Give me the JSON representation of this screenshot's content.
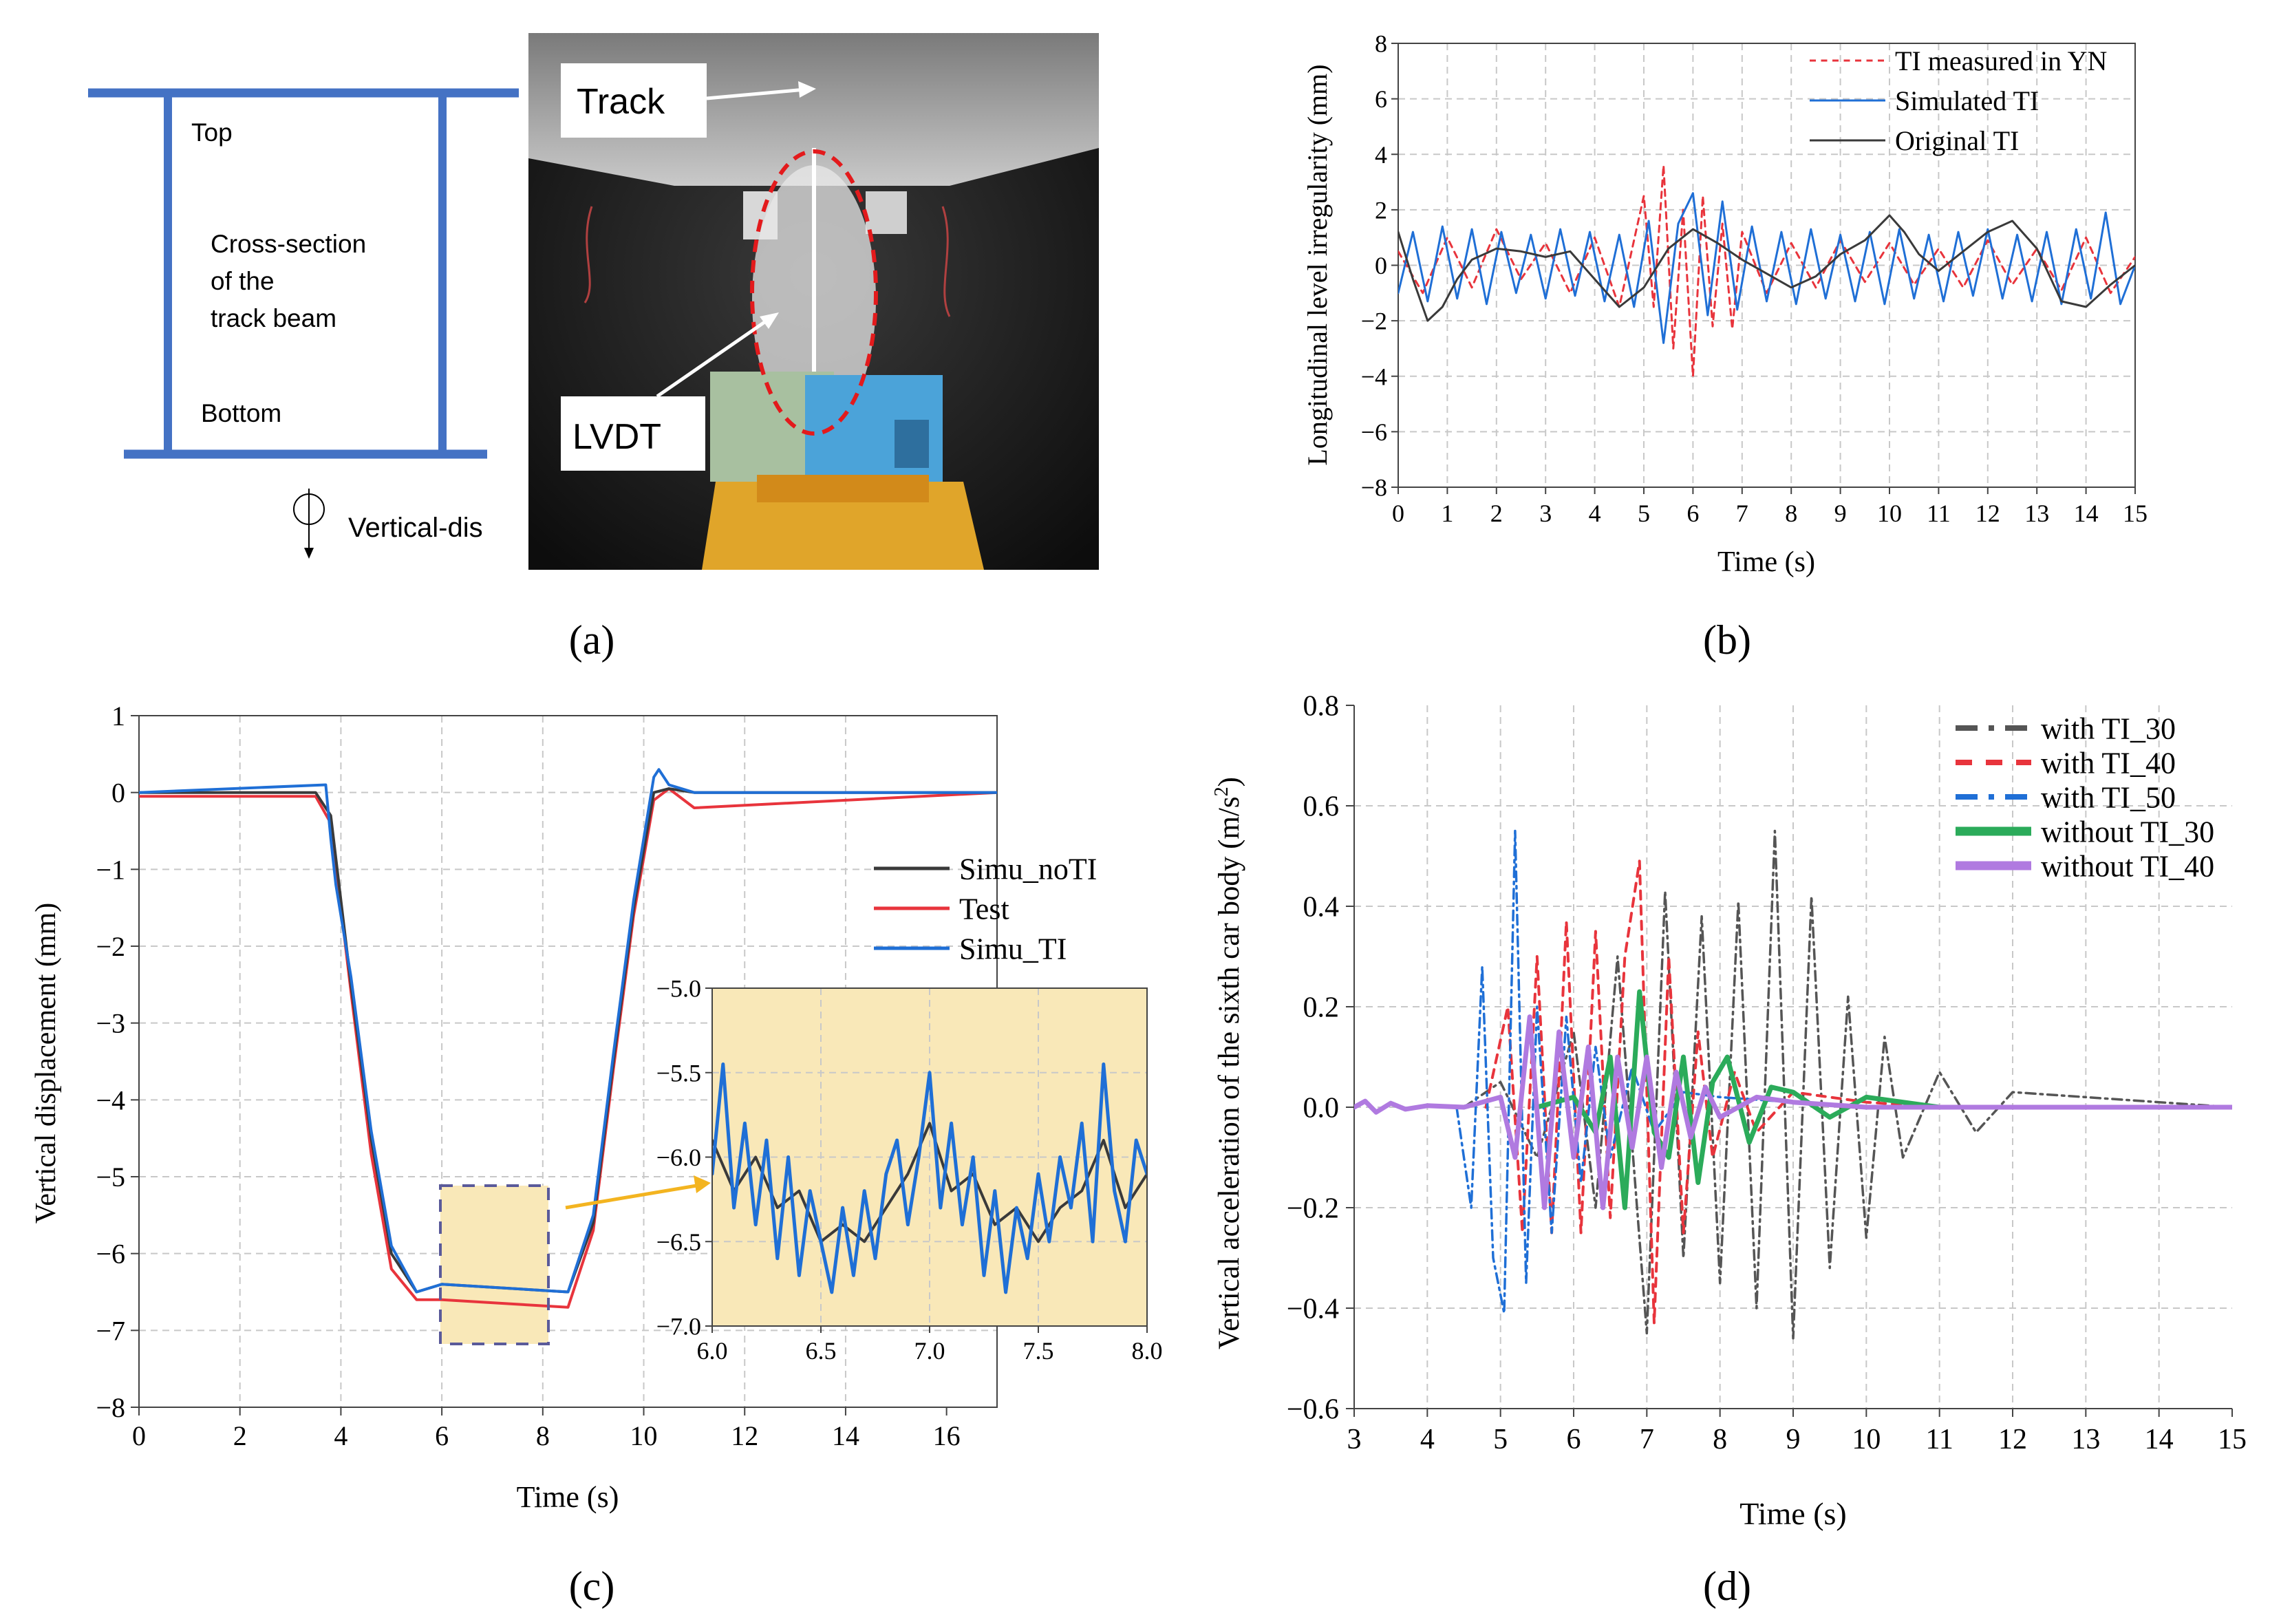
{
  "colors": {
    "beam": "#4472c4",
    "red": "#e8343c",
    "blue": "#1f6fd6",
    "black": "#3a3a3a",
    "gray": "#555555",
    "green": "#2bab5a",
    "purple": "#b07ae0",
    "zoom_bg": "#f9e8b8",
    "grid": "#c8c8c8",
    "arrow": "#f3b420"
  },
  "panel_a": {
    "label": "(a)",
    "diagram": {
      "top": "Top",
      "cross_section_line1": "Cross-section",
      "cross_section_line2": "of the",
      "cross_section_line3": "track beam",
      "bottom": "Bottom",
      "vertical_dis": "Vertical-dis"
    },
    "photo": {
      "track_label": "Track",
      "lvdt_label": "LVDT"
    }
  },
  "chart_data": [
    {
      "id": "b",
      "label": "(b)",
      "type": "line",
      "title": "",
      "xlabel": "Time (s)",
      "ylabel": "Longitudinal level irregularity (mm)",
      "xlim": [
        0,
        15
      ],
      "ylim": [
        -8,
        8
      ],
      "xticks": [
        "0",
        "1",
        "2",
        "3",
        "4",
        "5",
        "6",
        "7",
        "8",
        "9",
        "10",
        "11",
        "12",
        "13",
        "14",
        "15"
      ],
      "yticks": [
        "8",
        "6",
        "4",
        "2",
        "0",
        "−2",
        "−4",
        "−6",
        "−8"
      ],
      "legend_position": "top-right",
      "series": [
        {
          "name": "TI measured in YN",
          "style": "dashed",
          "color": "red",
          "x": [
            0,
            0.5,
            1,
            1.5,
            2,
            2.5,
            3,
            3.5,
            4,
            4.5,
            5,
            5.2,
            5.4,
            5.6,
            5.8,
            6,
            6.2,
            6.4,
            6.6,
            6.8,
            7,
            7.5,
            8,
            8.5,
            9,
            9.5,
            10,
            10.5,
            11,
            11.5,
            12,
            12.5,
            13,
            13.5,
            14,
            14.5,
            15
          ],
          "y": [
            0.5,
            -1,
            1,
            -0.8,
            1.3,
            -0.5,
            0.8,
            -1,
            1,
            -1.5,
            2.5,
            -1.5,
            3.6,
            -3,
            2,
            -4,
            2.5,
            -2.2,
            1.5,
            -2.3,
            1.2,
            -1,
            0.8,
            -0.8,
            0.9,
            -0.6,
            0.8,
            -0.7,
            0.6,
            -0.8,
            0.9,
            -0.7,
            0.6,
            -0.9,
            1,
            -1,
            0.3
          ]
        },
        {
          "name": "Simulated TI",
          "style": "solid",
          "color": "blue",
          "x": [
            0,
            0.3,
            0.6,
            0.9,
            1.2,
            1.5,
            1.8,
            2.1,
            2.4,
            2.7,
            3,
            3.3,
            3.6,
            3.9,
            4.2,
            4.5,
            4.8,
            5.1,
            5.4,
            5.7,
            6,
            6.3,
            6.6,
            6.9,
            7.2,
            7.5,
            7.8,
            8.1,
            8.4,
            8.7,
            9,
            9.3,
            9.6,
            9.9,
            10.2,
            10.5,
            10.8,
            11.1,
            11.4,
            11.7,
            12,
            12.3,
            12.6,
            12.9,
            13.2,
            13.5,
            13.8,
            14.1,
            14.4,
            14.7,
            15
          ],
          "y": [
            -1,
            1.2,
            -1.3,
            1.4,
            -1.2,
            1.3,
            -1.4,
            1.2,
            -1,
            1.1,
            -1.2,
            1.3,
            -1.1,
            1.2,
            -1.3,
            1.1,
            -1.5,
            1.6,
            -2.8,
            1.5,
            2.6,
            -1.8,
            2.3,
            -1.6,
            1.4,
            -1.3,
            1.2,
            -1.4,
            1.3,
            -1.2,
            1.1,
            -1.3,
            1.2,
            -1.4,
            1.3,
            -1.2,
            1.1,
            -1.3,
            1.2,
            -1.1,
            1.3,
            -1.2,
            1.1,
            -1.3,
            1.2,
            -1.4,
            1.3,
            -1.2,
            1.9,
            -1.4,
            0
          ]
        },
        {
          "name": "Original TI",
          "style": "solid",
          "color": "black",
          "x": [
            0,
            0.3,
            0.6,
            0.9,
            1.2,
            1.5,
            2,
            2.5,
            3,
            3.5,
            4,
            4.5,
            5,
            5.5,
            6,
            6.5,
            7,
            7.5,
            8,
            8.5,
            9,
            9.5,
            10,
            10.3,
            10.6,
            11,
            11.5,
            12,
            12.5,
            13,
            13.5,
            14,
            14.5,
            15
          ],
          "y": [
            1.2,
            -0.5,
            -2,
            -1.5,
            -0.5,
            0.2,
            0.6,
            0.5,
            0.3,
            0.5,
            -0.5,
            -1.5,
            -0.8,
            0.6,
            1.3,
            0.8,
            0.2,
            -0.3,
            -0.8,
            -0.4,
            0.4,
            0.9,
            1.8,
            1.2,
            0.4,
            -0.2,
            0.5,
            1.2,
            1.6,
            0.6,
            -1.3,
            -1.5,
            -0.7,
            0
          ]
        }
      ]
    },
    {
      "id": "c",
      "label": "(c)",
      "type": "line",
      "title": "",
      "xlabel": "Time (s)",
      "ylabel": "Vertical displacement (mm)",
      "xlim": [
        0,
        17
      ],
      "ylim": [
        -8,
        1
      ],
      "xticks": [
        "0",
        "2",
        "4",
        "6",
        "8",
        "10",
        "12",
        "14",
        "16"
      ],
      "yticks": [
        "1",
        "0",
        "−1",
        "−2",
        "−3",
        "−4",
        "−5",
        "−6",
        "−7",
        "−8"
      ],
      "legend_position": "center-right",
      "series": [
        {
          "name": "Simu_noTI",
          "color": "black",
          "x": [
            0,
            3.5,
            3.8,
            4.2,
            4.6,
            5,
            5.5,
            6,
            8.5,
            9,
            9.4,
            9.8,
            10.2,
            10.5,
            11,
            17
          ],
          "y": [
            0,
            0,
            -0.3,
            -2.5,
            -4.5,
            -6,
            -6.5,
            -6.4,
            -6.5,
            -5.6,
            -3.5,
            -1.5,
            0,
            0.05,
            0,
            0
          ]
        },
        {
          "name": "Test",
          "color": "red",
          "x": [
            0,
            3.5,
            3.8,
            4.2,
            4.6,
            5,
            5.5,
            6,
            8.5,
            9,
            9.4,
            9.8,
            10.2,
            10.5,
            11,
            17
          ],
          "y": [
            -0.05,
            -0.05,
            -0.4,
            -2.6,
            -4.7,
            -6.2,
            -6.6,
            -6.6,
            -6.7,
            -5.7,
            -3.6,
            -1.6,
            -0.1,
            0.05,
            -0.2,
            0
          ]
        },
        {
          "name": "Simu_TI",
          "color": "blue",
          "x": [
            0,
            3.7,
            3.8,
            3.9,
            4.2,
            4.6,
            5,
            5.5,
            6,
            8.5,
            9,
            9.4,
            9.8,
            10.2,
            10.3,
            10.5,
            11,
            17
          ],
          "y": [
            0,
            0.1,
            -0.6,
            -1.2,
            -2.4,
            -4.4,
            -5.9,
            -6.5,
            -6.4,
            -6.5,
            -5.5,
            -3.4,
            -1.4,
            0.2,
            0.3,
            0.1,
            0,
            0
          ]
        }
      ],
      "inset": {
        "xlim": [
          6.0,
          8.0
        ],
        "ylim": [
          -7.0,
          -5.0
        ],
        "xticks": [
          "6.0",
          "6.5",
          "7.0",
          "7.5",
          "8.0"
        ],
        "yticks": [
          "−5.0",
          "−5.5",
          "−6.0",
          "−6.5",
          "−7.0"
        ]
      }
    },
    {
      "id": "d",
      "label": "(d)",
      "type": "line",
      "title": "",
      "xlabel": "Time (s)",
      "ylabel": "Vertical acceleration of the sixth car body (m/s²)",
      "ylabel_main": "Vertical acceleration of the sixth car body (m/s",
      "ylabel_sup": "2",
      "ylabel_end": ")",
      "xlim": [
        3,
        15
      ],
      "ylim": [
        -0.6,
        0.8
      ],
      "xticks": [
        "3",
        "4",
        "5",
        "6",
        "7",
        "8",
        "9",
        "10",
        "11",
        "12",
        "13",
        "14",
        "15"
      ],
      "yticks": [
        "0.8",
        "0.6",
        "0.4",
        "0.2",
        "0.0",
        "−0.2",
        "−0.4",
        "−0.6"
      ],
      "legend_position": "top-right",
      "series": [
        {
          "name": "with TI_30",
          "style": "dash-dot",
          "color": "gray",
          "x": [
            4.5,
            5,
            5.5,
            6,
            6.3,
            6.6,
            7,
            7.25,
            7.5,
            7.75,
            8,
            8.25,
            8.5,
            8.75,
            9,
            9.25,
            9.5,
            9.75,
            10,
            10.25,
            10.5,
            11,
            11.5,
            12,
            13,
            14,
            15
          ],
          "y": [
            0,
            0.05,
            -0.1,
            0.15,
            -0.2,
            0.3,
            -0.45,
            0.43,
            -0.3,
            0.38,
            -0.35,
            0.41,
            -0.4,
            0.55,
            -0.46,
            0.42,
            -0.32,
            0.22,
            -0.26,
            0.14,
            -0.1,
            0.07,
            -0.05,
            0.03,
            0.02,
            0.01,
            0
          ]
        },
        {
          "name": "with TI_40",
          "style": "dashed",
          "color": "red",
          "x": [
            4.8,
            5.1,
            5.3,
            5.5,
            5.7,
            5.9,
            6.1,
            6.3,
            6.5,
            6.7,
            6.9,
            7.1,
            7.3,
            7.5,
            7.7,
            7.9,
            8.2,
            8.5,
            9,
            10,
            11,
            15
          ],
          "y": [
            0,
            0.2,
            -0.25,
            0.3,
            -0.25,
            0.37,
            -0.25,
            0.35,
            -0.22,
            0.3,
            0.49,
            -0.43,
            0.3,
            -0.25,
            0.15,
            -0.1,
            0.07,
            -0.05,
            0.03,
            0.01,
            0,
            0
          ]
        },
        {
          "name": "with TI_50",
          "style": "dash-dot",
          "color": "blue",
          "x": [
            4.4,
            4.6,
            4.75,
            4.9,
            5.05,
            5.2,
            5.35,
            5.5,
            5.7,
            5.9,
            6.1,
            6.3,
            6.5,
            6.8,
            7.1,
            7.5,
            8,
            9,
            10,
            15
          ],
          "y": [
            0,
            -0.2,
            0.28,
            -0.3,
            -0.41,
            0.55,
            -0.35,
            0.2,
            -0.25,
            0.18,
            -0.15,
            0.12,
            -0.1,
            0.08,
            -0.05,
            0.03,
            0.02,
            0.01,
            0,
            0
          ]
        },
        {
          "name": "without TI_30",
          "style": "solid",
          "color": "green",
          "x": [
            5.5,
            6,
            6.3,
            6.5,
            6.7,
            6.9,
            7.1,
            7.3,
            7.5,
            7.7,
            7.9,
            8.1,
            8.4,
            8.7,
            9,
            9.5,
            10,
            11,
            15
          ],
          "y": [
            0,
            0.02,
            -0.05,
            0.1,
            -0.2,
            0.23,
            -0.05,
            -0.1,
            0.1,
            -0.15,
            0.05,
            0.1,
            -0.07,
            0.04,
            0.03,
            -0.02,
            0.02,
            0,
            0
          ]
        },
        {
          "name": "without TI_40",
          "style": "solid",
          "color": "purple",
          "x": [
            3,
            3.15,
            3.3,
            3.5,
            3.7,
            4,
            4.5,
            5,
            5.2,
            5.4,
            5.6,
            5.8,
            6,
            6.2,
            6.4,
            6.6,
            6.8,
            7,
            7.2,
            7.4,
            7.6,
            7.8,
            8,
            8.5,
            9,
            10,
            11,
            15
          ],
          "y": [
            0,
            0.012,
            -0.01,
            0.008,
            -0.004,
            0.003,
            0,
            0.02,
            -0.1,
            0.18,
            -0.2,
            0.15,
            -0.1,
            0.12,
            -0.2,
            0.1,
            -0.08,
            0.1,
            -0.12,
            0.07,
            -0.06,
            0.04,
            -0.02,
            0.02,
            0.01,
            0,
            0,
            0
          ]
        }
      ]
    }
  ]
}
